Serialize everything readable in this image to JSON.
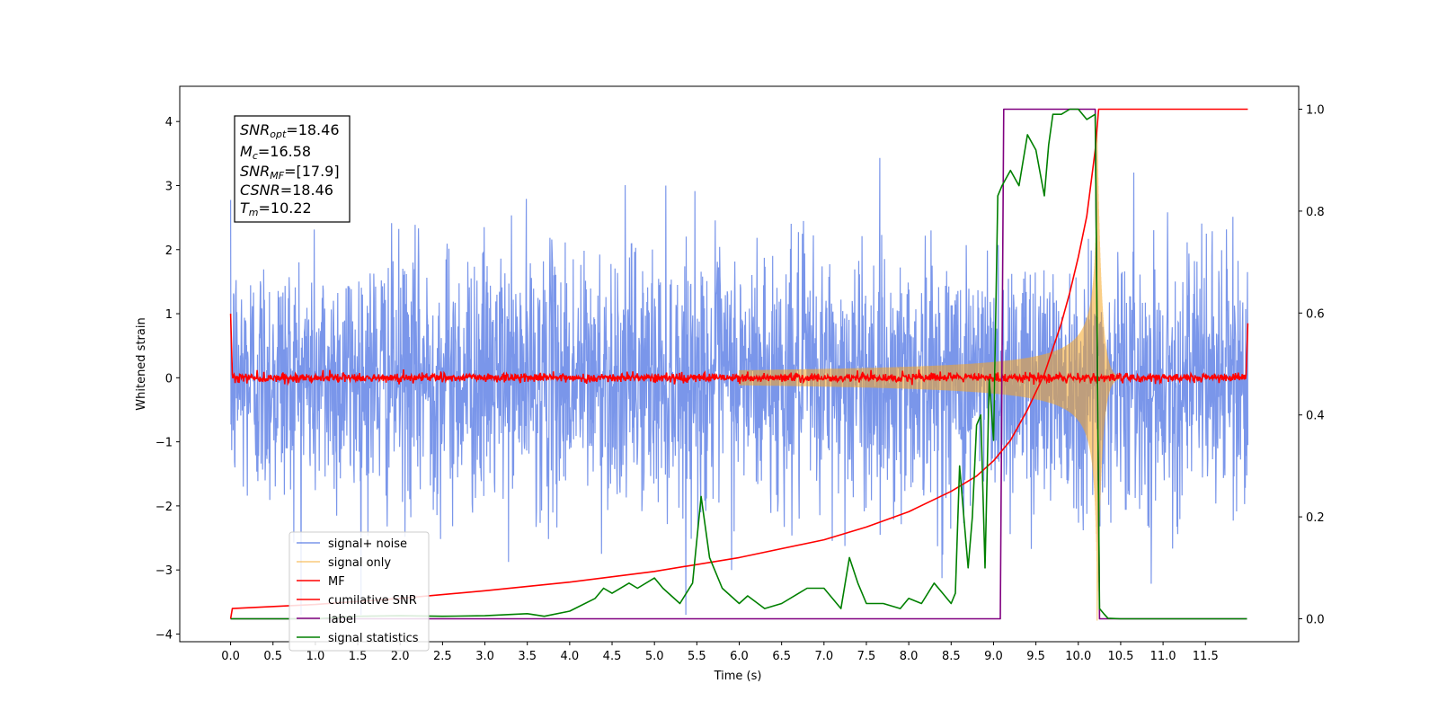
{
  "chart_data": {
    "type": "line",
    "xlabel": "Time (s)",
    "ylabel": "Whitened strain",
    "xlim": [
      -0.6,
      12.6
    ],
    "ylim": [
      -4.12,
      4.55
    ],
    "y2lim": [
      -0.045,
      1.045
    ],
    "x_ticks": [
      "0.0",
      "0.5",
      "1.0",
      "1.5",
      "2.0",
      "2.5",
      "3.0",
      "3.5",
      "4.0",
      "4.5",
      "5.0",
      "5.5",
      "6.0",
      "6.5",
      "7.0",
      "7.5",
      "8.0",
      "8.5",
      "9.0",
      "9.5",
      "10.0",
      "10.5",
      "11.0",
      "11.5"
    ],
    "y_ticks": [
      "4",
      "3",
      "2",
      "1",
      "0",
      "−1",
      "−2",
      "−3",
      "−4"
    ],
    "y2_ticks": [
      "1.0",
      "0.8",
      "0.6",
      "0.4",
      "0.2",
      "0.0"
    ],
    "annotation": {
      "snr_opt": {
        "base": "SNR",
        "sub": "opt",
        "value": "=18.46"
      },
      "mc": {
        "base": "M",
        "sub": "c",
        "value": "=16.58"
      },
      "snr_mf": {
        "base": "SNR",
        "sub": "MF",
        "value": "=[17.9]"
      },
      "csnr": {
        "base": "CSNR",
        "sub": "",
        "value": "=18.46"
      },
      "tm": {
        "base": "T",
        "sub": "m",
        "value": "=10.22"
      }
    },
    "series": [
      {
        "name": "signal+ noise",
        "color": "#4169e1",
        "axis": "left",
        "kind": "gaussian noise, sigma ~1.0, x 0.0-12.0"
      },
      {
        "name": "signal only",
        "color": "#f5a623",
        "axis": "left",
        "kind": "chirp, amplitude rising to ~3.9 at merger 10.22, ringdown to 10.5"
      },
      {
        "name": "MF",
        "color": "#ff0000",
        "axis": "left",
        "kind": "matched filter output, ~0 with noise, edge spikes 1.0 at 0.0 and 0.85 at 12.0"
      },
      {
        "name": "cumilative SNR",
        "color": "#ff0000",
        "axis": "right",
        "x": [
          0.0,
          0.02,
          1.0,
          2.0,
          3.0,
          4.0,
          5.0,
          6.0,
          7.0,
          7.5,
          8.0,
          8.5,
          8.8,
          9.0,
          9.2,
          9.4,
          9.6,
          9.8,
          9.9,
          10.0,
          10.1,
          10.2,
          10.22,
          10.24,
          11.0,
          12.0
        ],
        "y": [
          0.0,
          0.02,
          0.028,
          0.04,
          0.055,
          0.072,
          0.093,
          0.12,
          0.155,
          0.18,
          0.21,
          0.25,
          0.28,
          0.31,
          0.35,
          0.41,
          0.48,
          0.58,
          0.64,
          0.71,
          0.79,
          0.92,
          0.96,
          1.0,
          1.0,
          1.0
        ]
      },
      {
        "name": "label",
        "color": "#800080",
        "axis": "right",
        "x": [
          0.0,
          9.08,
          9.12,
          10.2,
          10.25,
          11.99
        ],
        "y": [
          0.0,
          0.0,
          1.0,
          1.0,
          0.0,
          0.0
        ]
      },
      {
        "name": "signal statistics",
        "color": "#008000",
        "axis": "right",
        "x": [
          0.0,
          0.5,
          1.0,
          1.5,
          2.0,
          2.5,
          3.0,
          3.5,
          3.7,
          4.0,
          4.3,
          4.4,
          4.5,
          4.7,
          4.8,
          5.0,
          5.1,
          5.3,
          5.45,
          5.55,
          5.6,
          5.65,
          5.8,
          6.0,
          6.1,
          6.3,
          6.5,
          6.8,
          7.0,
          7.2,
          7.3,
          7.4,
          7.5,
          7.7,
          7.9,
          8.0,
          8.15,
          8.3,
          8.4,
          8.5,
          8.55,
          8.6,
          8.65,
          8.7,
          8.75,
          8.8,
          8.85,
          8.9,
          8.95,
          9.0,
          9.05,
          9.1,
          9.2,
          9.3,
          9.4,
          9.5,
          9.6,
          9.65,
          9.7,
          9.8,
          9.9,
          10.0,
          10.1,
          10.2,
          10.25,
          10.3,
          10.35,
          10.5,
          11.0,
          11.5,
          11.99
        ],
        "y": [
          0.0,
          0.0,
          0.0,
          0.005,
          0.006,
          0.005,
          0.006,
          0.01,
          0.005,
          0.015,
          0.04,
          0.06,
          0.05,
          0.07,
          0.06,
          0.08,
          0.06,
          0.03,
          0.07,
          0.24,
          0.18,
          0.12,
          0.06,
          0.03,
          0.045,
          0.02,
          0.03,
          0.06,
          0.06,
          0.02,
          0.12,
          0.07,
          0.03,
          0.03,
          0.02,
          0.04,
          0.03,
          0.07,
          0.05,
          0.03,
          0.05,
          0.3,
          0.2,
          0.1,
          0.2,
          0.38,
          0.4,
          0.1,
          0.47,
          0.35,
          0.83,
          0.85,
          0.88,
          0.85,
          0.95,
          0.92,
          0.83,
          0.93,
          0.99,
          0.99,
          1.0,
          1.0,
          0.98,
          0.99,
          0.02,
          0.01,
          0.001,
          0.0,
          0.0,
          0.0,
          0.0
        ]
      }
    ],
    "legend": {
      "position": "lower-left",
      "entries": [
        "signal+ noise",
        "signal only",
        "MF",
        "cumilative SNR",
        "label",
        "signal statistics"
      ]
    },
    "grid": false
  }
}
